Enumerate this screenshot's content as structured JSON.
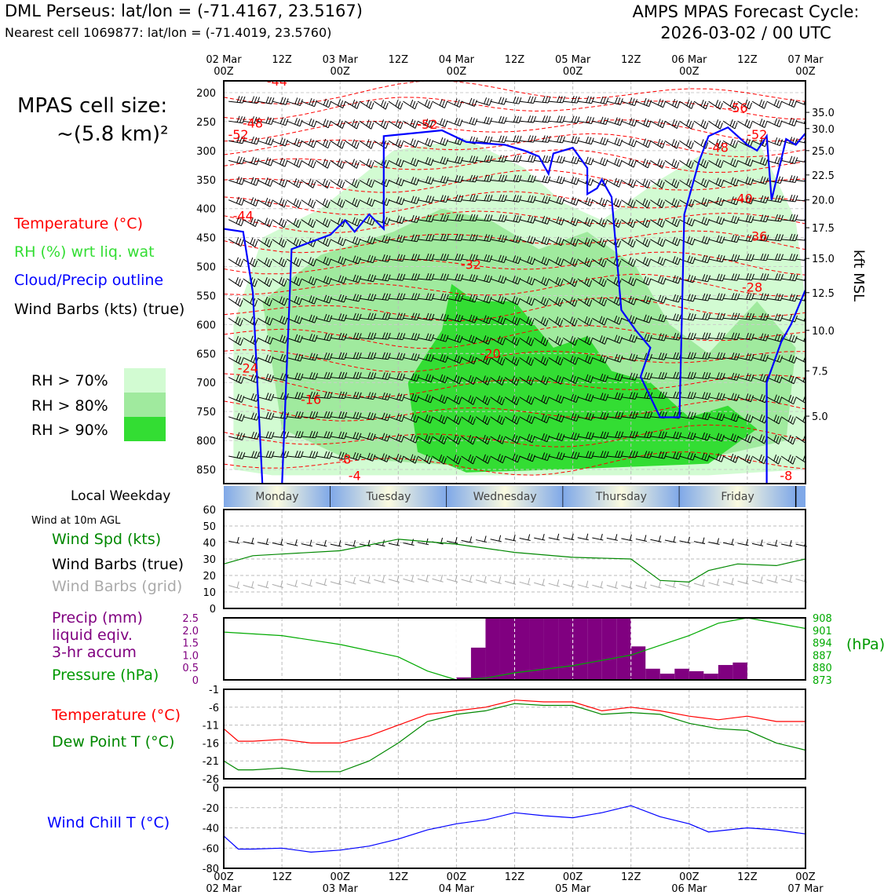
{
  "header": {
    "title_left": "DML Perseus: lat/lon = (-71.4167, 23.5167)",
    "subtitle_left": "Nearest cell 1069877: lat/lon = (-71.4019, 23.5760)",
    "title_right_line1": "AMPS MPAS Forecast Cycle:",
    "title_right_line2": "2026-03-02 / 00 UTC"
  },
  "cell_size": {
    "line1": "MPAS cell size:",
    "line2": "~(5.8 km)²"
  },
  "legend": {
    "temperature": "Temperature (°C)",
    "rh": "RH (%) wrt liq. wat",
    "cloud": "Cloud/Precip outline",
    "barbs": "Wind Barbs (kts) (true)",
    "rh70": "RH > 70%",
    "rh80": "RH > 80%",
    "rh90": "RH > 90%"
  },
  "colors": {
    "rh70": "#d2fbd2",
    "rh80": "#a0ea9e",
    "rh90": "#33dd33",
    "temperature": "#ff0000",
    "cloud": "#0000ff",
    "precip": "#800080",
    "pressure": "#00aa00",
    "dewpoint": "#008800",
    "windchill": "#0000ff"
  },
  "time_axis": {
    "top_labels": [
      "02 Mar\n00Z",
      "12Z",
      "03 Mar\n00Z",
      "12Z",
      "04 Mar\n00Z",
      "12Z",
      "05 Mar\n00Z",
      "12Z",
      "06 Mar\n00Z",
      "12Z",
      "07 Mar\n00Z"
    ],
    "bottom_labels": [
      "00Z\n02 Mar",
      "12Z",
      "00Z\n03 Mar",
      "12Z",
      "00Z\n04 Mar",
      "12Z",
      "00Z\n05 Mar",
      "12Z",
      "00Z\n06 Mar",
      "12Z",
      "00Z\n07 Mar"
    ]
  },
  "weekday_bar": {
    "label": "Local Weekday",
    "days": [
      "Monday",
      "Tuesday",
      "Wednesday",
      "Thursday",
      "Friday"
    ]
  },
  "wind10m_label": "Wind at 10m AGL",
  "kft_label": "kft MSL",
  "panel_labels": {
    "wind_spd": "Wind Spd (kts)",
    "barbs_true": "Wind Barbs (true)",
    "barbs_grid": "Wind Barbs (grid)",
    "precip1": "Precip (mm)",
    "precip2": "liquid eqiv.",
    "precip3": "3-hr accum",
    "pressure": "Pressure (hPa)",
    "hpa_unit": "(hPa)",
    "temp": "Temperature (°C)",
    "dew": "Dew Point T (°C)",
    "windchill": "Wind Chill T (°C)"
  },
  "chart_data": [
    {
      "type": "heatmap",
      "x_hours": [
        0,
        120
      ],
      "pressure_ticks": [
        200,
        250,
        300,
        350,
        400,
        450,
        500,
        550,
        600,
        650,
        700,
        750,
        800,
        850
      ],
      "kft_ticks": [
        {
          "p": 234,
          "label": "35.0"
        },
        {
          "p": 262,
          "label": "30.0"
        },
        {
          "p": 300,
          "label": "25.0"
        },
        {
          "p": 342,
          "label": "22.5"
        },
        {
          "p": 385,
          "label": "20.0"
        },
        {
          "p": 433,
          "label": "17.5"
        },
        {
          "p": 486,
          "label": "15.0"
        },
        {
          "p": 545,
          "label": "12.5"
        },
        {
          "p": 610,
          "label": "10.0"
        },
        {
          "p": 680,
          "label": "7.5"
        },
        {
          "p": 758,
          "label": "5.0"
        }
      ],
      "temperature_labels": [
        {
          "t": 11,
          "p": 188,
          "label": "-44"
        },
        {
          "t": 6,
          "p": 260,
          "label": "-48"
        },
        {
          "t": 3,
          "p": 280,
          "label": "-52"
        },
        {
          "t": 42,
          "p": 262,
          "label": "-52"
        },
        {
          "t": 106,
          "p": 234,
          "label": "-56"
        },
        {
          "t": 110,
          "p": 280,
          "label": "-52"
        },
        {
          "t": 102,
          "p": 302,
          "label": "-48"
        },
        {
          "t": 4,
          "p": 420,
          "label": "-44"
        },
        {
          "t": 107,
          "p": 390,
          "label": "-40"
        },
        {
          "t": 110,
          "p": 455,
          "label": "-36"
        },
        {
          "t": 51,
          "p": 504,
          "label": "-32"
        },
        {
          "t": 109,
          "p": 543,
          "label": "-28"
        },
        {
          "t": 5,
          "p": 683,
          "label": "-24"
        },
        {
          "t": 55,
          "p": 658,
          "label": "-20"
        },
        {
          "t": 18,
          "p": 737,
          "label": "-16"
        },
        {
          "t": 25,
          "p": 840,
          "label": "-8"
        },
        {
          "t": 27,
          "p": 868,
          "label": "-4"
        },
        {
          "t": 116,
          "p": 868,
          "label": "-8"
        }
      ]
    },
    {
      "type": "line",
      "name": "Wind Spd (kts)",
      "x_hours": [
        0,
        6,
        12,
        24,
        36,
        48,
        60,
        72,
        84,
        90,
        96,
        100,
        106,
        114,
        120
      ],
      "values": [
        27,
        32,
        33,
        35,
        42,
        39,
        34,
        31,
        30,
        17,
        16,
        23,
        27,
        26,
        30
      ],
      "ylim": [
        0,
        60
      ],
      "yticks": [
        0,
        10,
        20,
        30,
        40,
        50,
        60
      ]
    },
    {
      "type": "bar",
      "name": "Precip (mm)",
      "x_hours": [
        30,
        33,
        36,
        39,
        42,
        45,
        48,
        51,
        54,
        57,
        60,
        63,
        66,
        69,
        72,
        75,
        78,
        81,
        84,
        87,
        90,
        93,
        96,
        99,
        102,
        105
      ],
      "values": [
        0,
        0,
        0,
        0,
        0,
        0,
        0.1,
        1.3,
        2.5,
        2.5,
        2.5,
        2.5,
        2.5,
        2.5,
        2.5,
        2.5,
        2.5,
        2.5,
        1.35,
        0.45,
        0.25,
        0.45,
        0.35,
        0.25,
        0.6,
        0.7
      ],
      "ylim": [
        0,
        2.5
      ],
      "yticks": [
        0,
        0.5,
        1.0,
        1.5,
        2.0,
        2.5
      ],
      "pressure_series": {
        "x_hours": [
          0,
          12,
          24,
          36,
          42,
          48,
          54,
          60,
          72,
          84,
          96,
          102,
          108,
          120
        ],
        "values": [
          900,
          898,
          893,
          886,
          878,
          873,
          874,
          877,
          881,
          887,
          898,
          905,
          908,
          902
        ],
        "ylim": [
          873,
          908
        ],
        "yticks": [
          873,
          880,
          887,
          894,
          901,
          908
        ]
      }
    },
    {
      "type": "line",
      "ylim": [
        -26,
        -1
      ],
      "yticks": [
        -26,
        -21,
        -16,
        -11,
        -6,
        -1
      ],
      "series": [
        {
          "name": "Temperature (°C)",
          "x_hours": [
            0,
            3,
            6,
            12,
            18,
            24,
            30,
            36,
            42,
            48,
            54,
            60,
            66,
            72,
            78,
            84,
            90,
            96,
            102,
            108,
            114,
            120
          ],
          "values": [
            -12,
            -15.5,
            -15.5,
            -15,
            -16,
            -16,
            -14,
            -11,
            -8,
            -7,
            -6,
            -4,
            -4.5,
            -4.5,
            -7,
            -6,
            -7,
            -8.5,
            -9.5,
            -8.5,
            -10,
            -10
          ]
        },
        {
          "name": "Dew Point T (°C)",
          "x_hours": [
            0,
            3,
            6,
            12,
            18,
            24,
            30,
            36,
            42,
            48,
            54,
            60,
            66,
            72,
            78,
            84,
            90,
            96,
            102,
            108,
            114,
            120
          ],
          "values": [
            -21,
            -23.5,
            -23.5,
            -23,
            -24,
            -24,
            -21,
            -16,
            -10,
            -8,
            -7,
            -5,
            -5.5,
            -5.5,
            -8,
            -7.5,
            -8,
            -10.5,
            -12,
            -12.5,
            -16,
            -18
          ]
        }
      ]
    },
    {
      "type": "line",
      "name": "Wind Chill T (°C)",
      "x_hours": [
        0,
        3,
        6,
        12,
        18,
        24,
        30,
        36,
        42,
        48,
        54,
        60,
        66,
        72,
        78,
        84,
        90,
        96,
        100,
        108,
        114,
        120
      ],
      "values": [
        -48,
        -61,
        -61,
        -60,
        -64,
        -62,
        -58,
        -51,
        -42,
        -36,
        -32,
        -25,
        -28,
        -30,
        -25,
        -18,
        -29,
        -36,
        -44,
        -40,
        -42,
        -46
      ],
      "ylim": [
        -80,
        0
      ],
      "yticks": [
        -80,
        -60,
        -40,
        -20,
        0
      ]
    }
  ]
}
